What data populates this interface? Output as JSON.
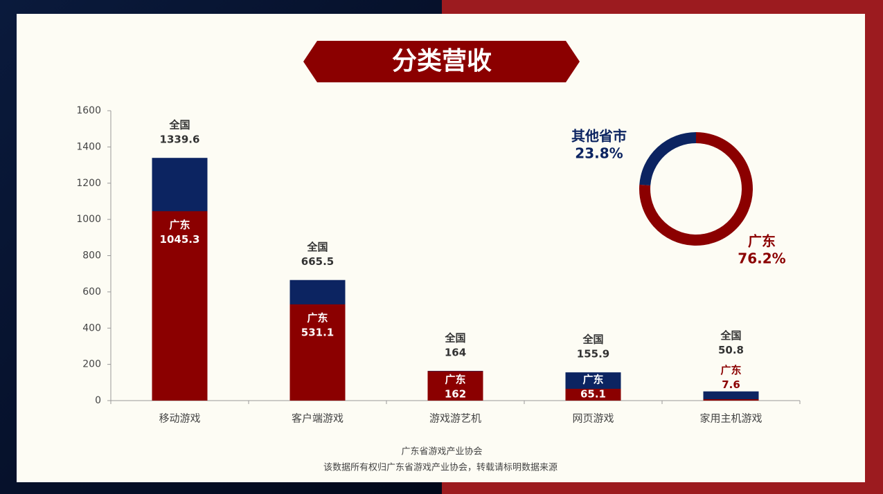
{
  "chart_data": [
    {
      "type": "bar",
      "title": "分类营收",
      "categories": [
        "移动游戏",
        "客户端游戏",
        "游戏游艺机",
        "网页游戏",
        "家用主机游戏"
      ],
      "series": [
        {
          "name": "全国",
          "color": "#0c2461",
          "values": [
            1339.6,
            665.5,
            164,
            155.9,
            50.8
          ]
        },
        {
          "name": "广东",
          "color": "#8b0000",
          "values": [
            1045.3,
            531.1,
            162,
            65.1,
            7.6
          ]
        }
      ],
      "ylim": [
        0,
        1600
      ],
      "yticks": [
        0,
        200,
        400,
        600,
        800,
        1000,
        1200,
        1400,
        1600
      ]
    },
    {
      "type": "donut",
      "categories": [
        "广东",
        "其他省市"
      ],
      "values": [
        76.2,
        23.8
      ],
      "value_labels": [
        "76.2%",
        "23.8%"
      ],
      "colors": [
        "#8b0000",
        "#0c2461"
      ]
    }
  ],
  "source": [
    "广东省游戏产业协会",
    "该数据所有权归广东省游戏产业协会，转载请标明数据来源"
  ]
}
